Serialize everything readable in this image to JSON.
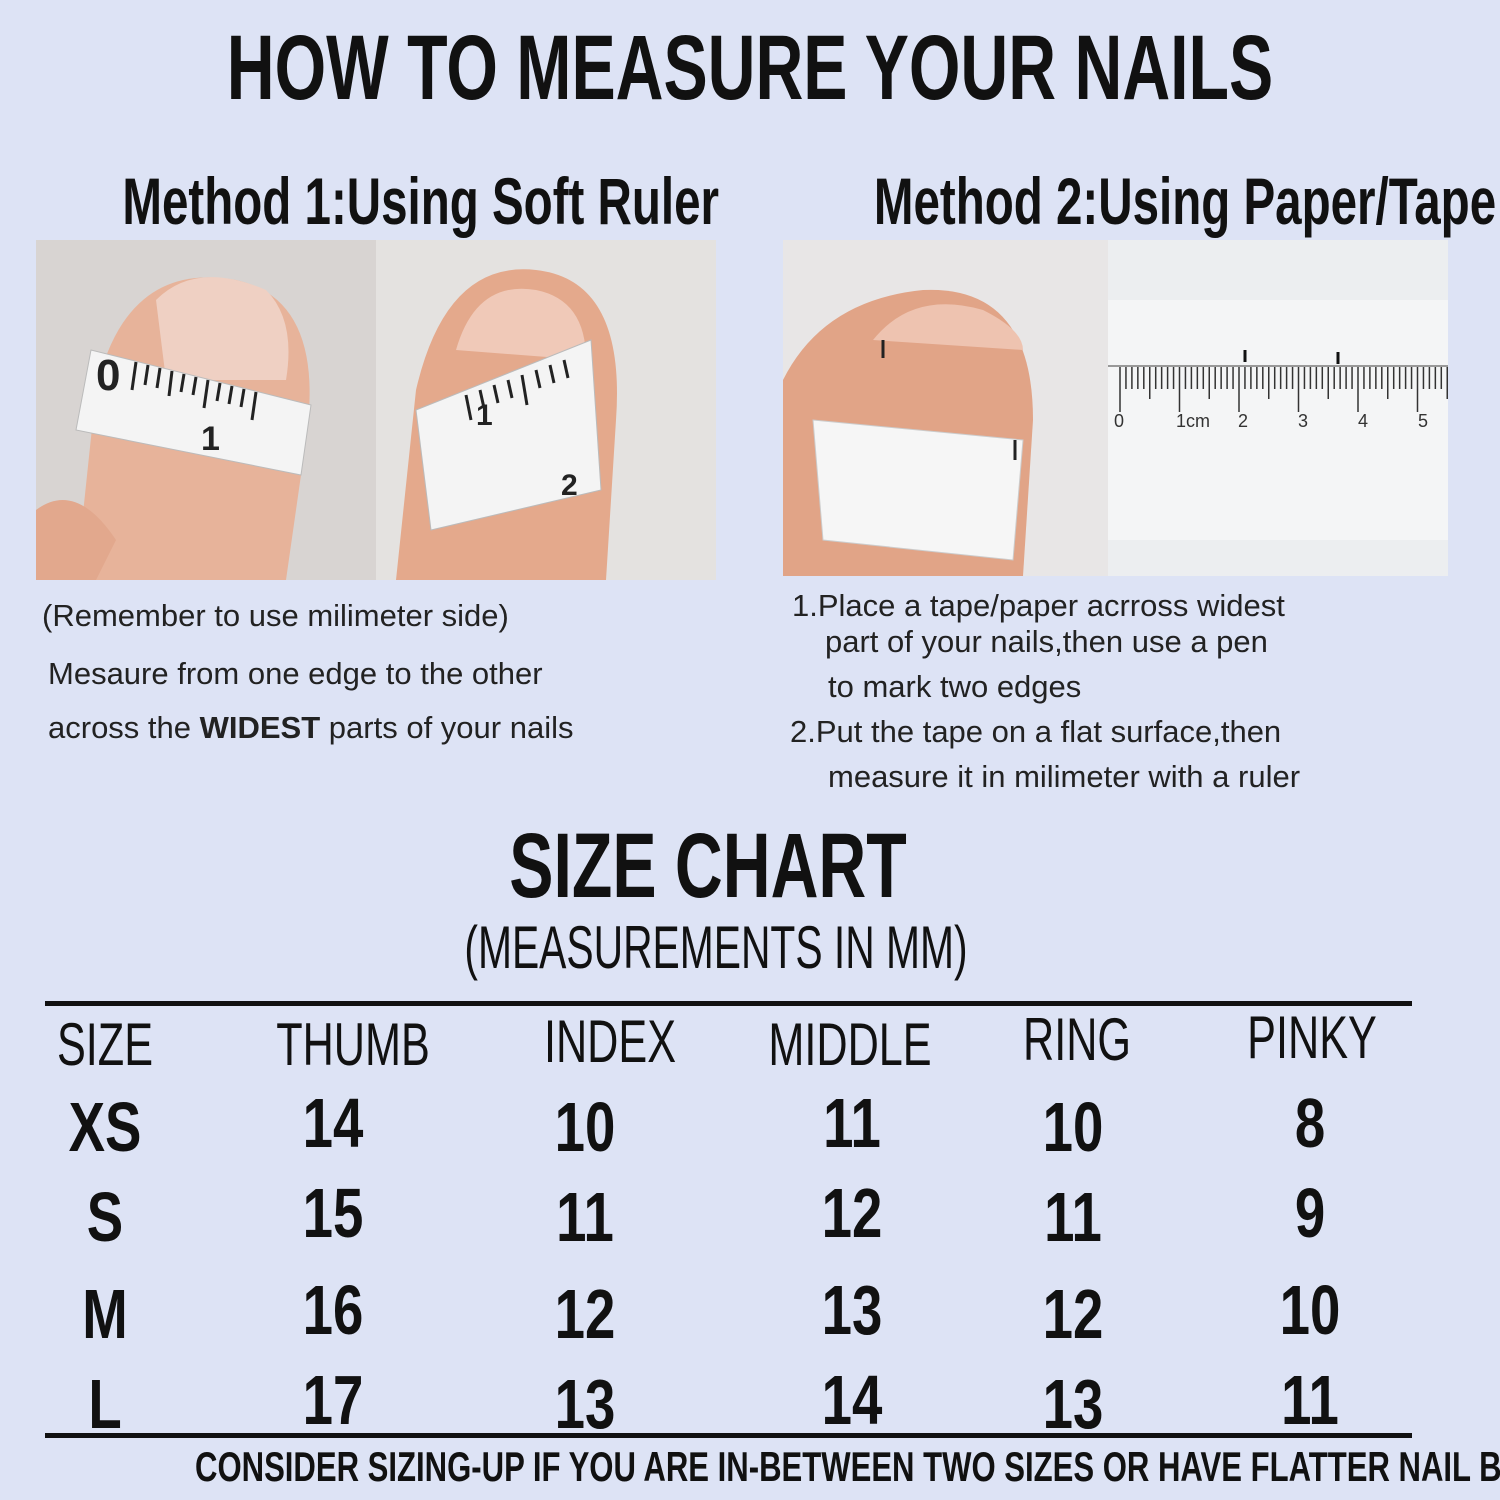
{
  "title": "HOW TO MEASURE YOUR NAILS",
  "method1": {
    "heading": "Method 1:Using Soft Ruler",
    "note": "(Remember to use milimeter side)",
    "line1": "Mesaure from one edge to the other",
    "line2_pre": "across the ",
    "line2_bold": "WIDEST",
    "line2_post": " parts of your nails",
    "tape_labels": [
      "0",
      "1",
      "1",
      "2"
    ]
  },
  "method2": {
    "heading": "Method 2:Using Paper/Tape",
    "step1_a": "1.Place a tape/paper acrross widest",
    "step1_b": "part of your nails,then use a pen",
    "step1_c": "to mark two edges",
    "step2_a": "2.Put the tape on a flat surface,then",
    "step2_b": "measure it in milimeter with a ruler",
    "ruler_labels": [
      "0",
      "1cm",
      "2",
      "3",
      "4",
      "5"
    ]
  },
  "size_chart": {
    "title": "SIZE CHART",
    "subtitle": "(MEASUREMENTS IN MM)",
    "headers": [
      "SIZE",
      "THUMB",
      "INDEX",
      "MIDDLE",
      "RING",
      "PINKY"
    ],
    "rows": [
      [
        "XS",
        "14",
        "10",
        "11",
        "10",
        "8"
      ],
      [
        "S",
        "15",
        "11",
        "12",
        "11",
        "9"
      ],
      [
        "M",
        "16",
        "12",
        "13",
        "12",
        "10"
      ],
      [
        "L",
        "17",
        "13",
        "14",
        "13",
        "11"
      ]
    ]
  },
  "footer": "CONSIDER SIZING-UP IF YOU ARE IN-BETWEEN TWO SIZES OR HAVE FLATTER NAIL BEDS",
  "colors": {
    "background": "#dde3f5",
    "text": "#111111",
    "skin": "#e9b59c",
    "tape": "#f4f4f4"
  }
}
